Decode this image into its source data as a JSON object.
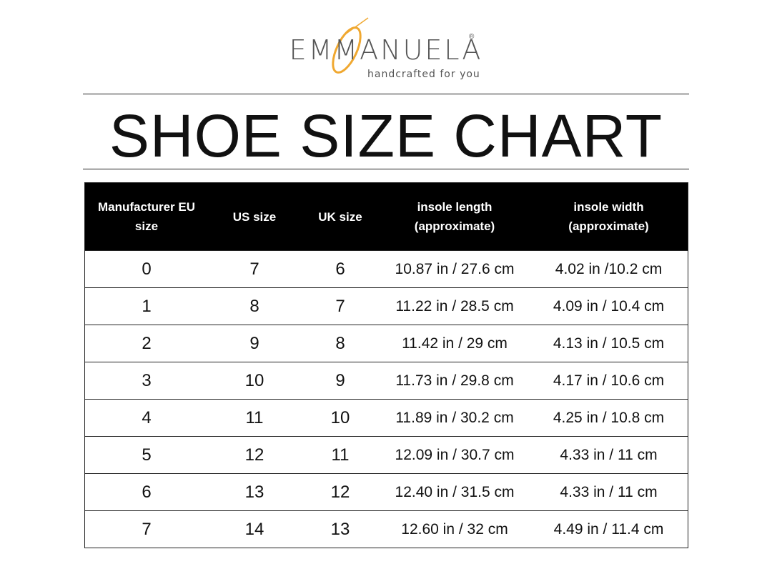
{
  "header": {
    "brand": "EMMANUELA",
    "registered": "®",
    "tagline": "handcrafted for you"
  },
  "title": "SHOE SIZE CHART",
  "table": {
    "columns": [
      "Manufacturer EU size",
      "US size",
      "UK size",
      "insole length (approximate)",
      "insole width (approximate)"
    ],
    "rows": [
      [
        0,
        7,
        6,
        "10.87 in / 27.6 cm",
        "4.02 in /10.2 cm"
      ],
      [
        1,
        8,
        7,
        "11.22 in / 28.5 cm",
        "4.09 in / 10.4 cm"
      ],
      [
        2,
        9,
        8,
        "11.42 in / 29 cm",
        "4.13 in / 10.5 cm"
      ],
      [
        3,
        10,
        9,
        "11.73 in / 29.8 cm",
        "4.17 in / 10.6 cm"
      ],
      [
        4,
        11,
        10,
        "11.89 in / 30.2 cm",
        "4.25 in / 10.8 cm"
      ],
      [
        5,
        12,
        11,
        "12.09 in / 30.7 cm",
        "4.33 in / 11 cm"
      ],
      [
        6,
        13,
        12,
        "12.40 in / 31.5 cm",
        "4.33 in / 11 cm"
      ],
      [
        7,
        14,
        13,
        "12.60 in / 32 cm",
        "4.49 in / 11.4 cm"
      ]
    ]
  }
}
